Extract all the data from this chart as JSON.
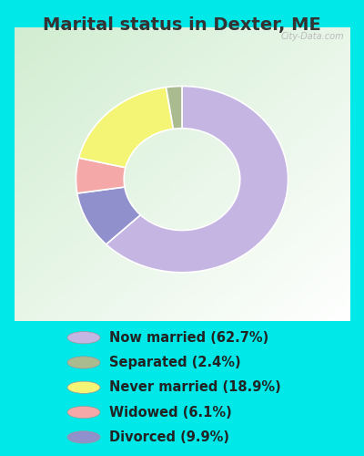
{
  "title": "Marital status in Dexter, ME",
  "labels": [
    "Now married (62.7%)",
    "Separated (2.4%)",
    "Never married (18.9%)",
    "Widowed (6.1%)",
    "Divorced (9.9%)"
  ],
  "colors": [
    "#c5b5e3",
    "#aabb90",
    "#f5f575",
    "#f5a8a8",
    "#9090cc"
  ],
  "plot_sizes": [
    62.7,
    2.4,
    18.9,
    6.1,
    9.9
  ],
  "plot_order_sizes": [
    62.7,
    9.9,
    6.1,
    18.9,
    2.4
  ],
  "plot_order_colors": [
    "#c5b5e3",
    "#9090cc",
    "#f5a8a8",
    "#f5f575",
    "#aabb90"
  ],
  "bg_cyan": "#00e8e8",
  "chart_bg_tl": "#d0ead0",
  "chart_bg_br": "#f0f8f0",
  "title_fontsize": 14,
  "legend_fontsize": 10.5,
  "watermark": "City-Data.com"
}
